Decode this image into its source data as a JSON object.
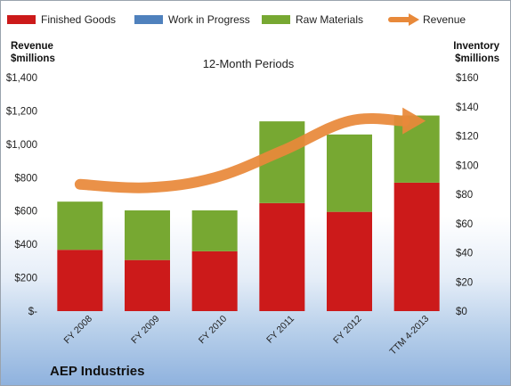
{
  "chart_data": {
    "type": "bar",
    "subtitle": "12-Month Periods",
    "company": "AEP Industries",
    "left_axis": {
      "label_line1": "Revenue",
      "label_line2": "$millions",
      "ticks": [
        "$-",
        "$200",
        "$400",
        "$600",
        "$800",
        "$1,000",
        "$1,200",
        "$1,400"
      ],
      "range": [
        0,
        1400
      ]
    },
    "right_axis": {
      "label_line1": "Inventory",
      "label_line2": "$millions",
      "ticks": [
        "$0",
        "$20",
        "$40",
        "$60",
        "$80",
        "$100",
        "$120",
        "$140",
        "$160"
      ],
      "range": [
        0,
        160
      ]
    },
    "categories": [
      "FY 2008",
      "FY 2009",
      "FY 2010",
      "FY 2011",
      "FY 2012",
      "TTM 4-2013"
    ],
    "series": [
      {
        "name": "Finished Goods",
        "axis": "right",
        "kind": "stacked-bar",
        "color": "#cc1a1a",
        "values": [
          42,
          35,
          41,
          74,
          68,
          88
        ]
      },
      {
        "name": "Work in Progress",
        "axis": "right",
        "kind": "stacked-bar",
        "color": "#4f81bd",
        "values": [
          0,
          0,
          0,
          0,
          0,
          0
        ]
      },
      {
        "name": "Raw Materials",
        "axis": "right",
        "kind": "stacked-bar",
        "color": "#77a832",
        "values": [
          33,
          34,
          28,
          56,
          53,
          46
        ]
      },
      {
        "name": "Revenue",
        "axis": "left",
        "kind": "arrow-line",
        "color": "#e8893a",
        "values": [
          760,
          740,
          800,
          960,
          1140,
          1140
        ]
      }
    ],
    "legend_position": "top",
    "grid": false
  }
}
